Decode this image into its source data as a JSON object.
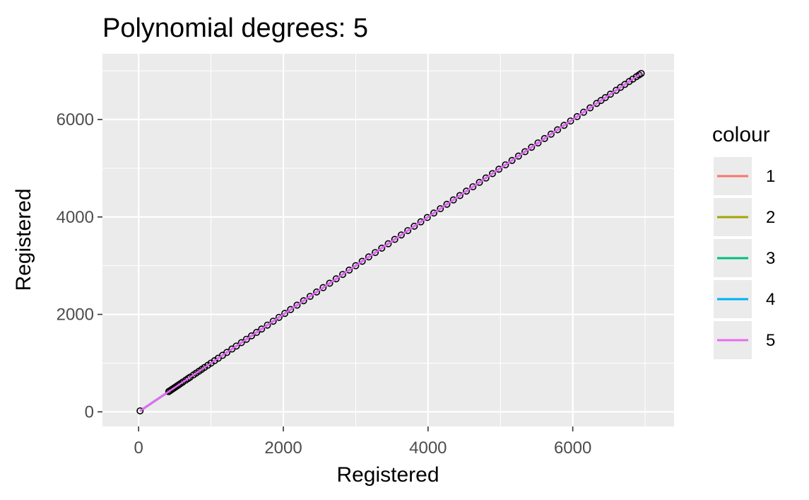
{
  "chart_data": {
    "type": "scatter",
    "title": "Polynomial degrees: 5",
    "xlabel": "Registered",
    "ylabel": "Registered",
    "xlim": [
      -500,
      7400
    ],
    "ylim": [
      -300,
      7350
    ],
    "x_ticks": [
      0,
      2000,
      4000,
      6000
    ],
    "y_ticks": [
      0,
      2000,
      4000,
      6000
    ],
    "x_tick_labels": [
      "0",
      "2000",
      "4000",
      "6000"
    ],
    "y_tick_labels": [
      "0",
      "2000",
      "4000",
      "6000"
    ],
    "grid": true,
    "legend": {
      "title": "colour",
      "position": "right",
      "entries": [
        {
          "label": "1",
          "color": "#F8766D"
        },
        {
          "label": "2",
          "color": "#A3A500"
        },
        {
          "label": "3",
          "color": "#00BF7D"
        },
        {
          "label": "4",
          "color": "#00B0F6"
        },
        {
          "label": "5",
          "color": "#E76BF3"
        }
      ]
    },
    "series": [
      {
        "name": "1",
        "type": "line",
        "color": "#F8766D",
        "x": [
          20,
          6950
        ],
        "y": [
          20,
          6950
        ]
      },
      {
        "name": "2",
        "type": "line",
        "color": "#A3A500",
        "x": [
          20,
          6950
        ],
        "y": [
          20,
          6950
        ]
      },
      {
        "name": "3",
        "type": "line",
        "color": "#00BF7D",
        "x": [
          20,
          6950
        ],
        "y": [
          20,
          6950
        ]
      },
      {
        "name": "4",
        "type": "line",
        "color": "#00B0F6",
        "x": [
          20,
          6950
        ],
        "y": [
          20,
          6950
        ]
      },
      {
        "name": "5",
        "type": "line",
        "color": "#E76BF3",
        "x": [
          20,
          6950
        ],
        "y": [
          20,
          6950
        ]
      }
    ],
    "points": {
      "x": [
        20,
        416,
        432,
        451,
        470,
        492,
        515,
        538,
        560,
        580,
        610,
        650,
        683,
        712,
        758,
        795,
        834,
        872,
        910,
        956,
        1000,
        1050,
        1100,
        1160,
        1220,
        1290,
        1350,
        1420,
        1490,
        1560,
        1630,
        1700,
        1780,
        1860,
        1940,
        2020,
        2100,
        2190,
        2280,
        2370,
        2460,
        2550,
        2640,
        2730,
        2820,
        2910,
        3000,
        3090,
        3180,
        3270,
        3360,
        3450,
        3540,
        3630,
        3720,
        3810,
        3900,
        3990,
        4080,
        4170,
        4260,
        4350,
        4440,
        4530,
        4620,
        4710,
        4800,
        4890,
        4980,
        5070,
        5160,
        5250,
        5340,
        5430,
        5520,
        5610,
        5700,
        5790,
        5880,
        5970,
        6060,
        6150,
        6240,
        6330,
        6390,
        6450,
        6520,
        6600,
        6660,
        6720,
        6780,
        6830,
        6880,
        6917,
        6946
      ],
      "y": [
        20,
        416,
        432,
        451,
        470,
        492,
        515,
        538,
        560,
        580,
        610,
        650,
        683,
        712,
        758,
        795,
        834,
        872,
        910,
        956,
        1000,
        1050,
        1100,
        1160,
        1220,
        1290,
        1350,
        1420,
        1490,
        1560,
        1630,
        1700,
        1780,
        1860,
        1940,
        2020,
        2100,
        2190,
        2280,
        2370,
        2460,
        2550,
        2640,
        2730,
        2820,
        2910,
        3000,
        3090,
        3180,
        3270,
        3360,
        3450,
        3540,
        3630,
        3720,
        3810,
        3900,
        3990,
        4080,
        4170,
        4260,
        4350,
        4440,
        4530,
        4620,
        4710,
        4800,
        4890,
        4980,
        5070,
        5160,
        5250,
        5340,
        5430,
        5520,
        5610,
        5700,
        5790,
        5880,
        5970,
        6060,
        6150,
        6240,
        6330,
        6390,
        6450,
        6520,
        6600,
        6660,
        6720,
        6780,
        6830,
        6880,
        6917,
        6946
      ],
      "color": "#000000",
      "fill": "none"
    }
  }
}
